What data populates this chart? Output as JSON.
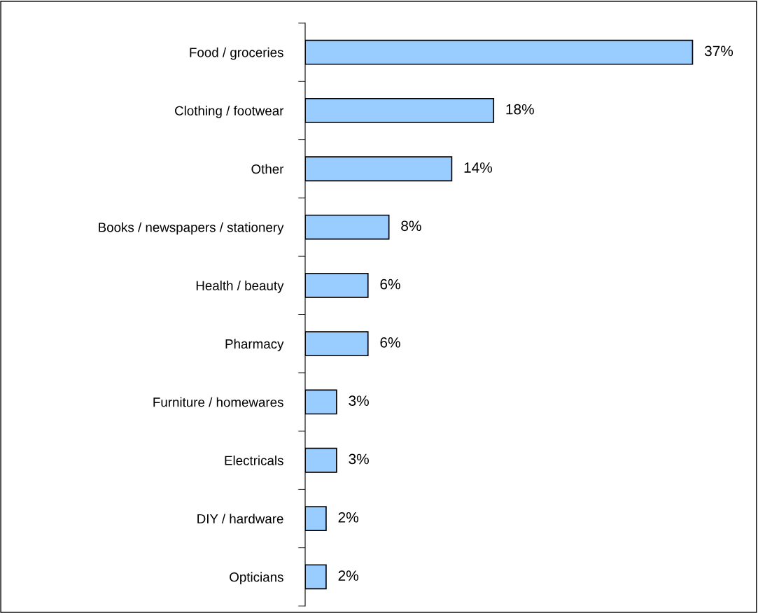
{
  "chart_data": {
    "type": "bar",
    "orientation": "horizontal",
    "categories": [
      "Food / groceries",
      "Clothing / footwear",
      "Other",
      "Books / newspapers / stationery",
      "Health / beauty",
      "Pharmacy",
      "Furniture / homewares",
      "Electricals",
      "DIY / hardware",
      "Opticians"
    ],
    "values": [
      37,
      18,
      14,
      8,
      6,
      6,
      3,
      3,
      2,
      2
    ],
    "value_labels": [
      "37%",
      "18%",
      "14%",
      "8%",
      "6%",
      "6%",
      "3%",
      "3%",
      "2%",
      "2%"
    ],
    "color": "#99ccff",
    "grid": false,
    "legend": false
  }
}
